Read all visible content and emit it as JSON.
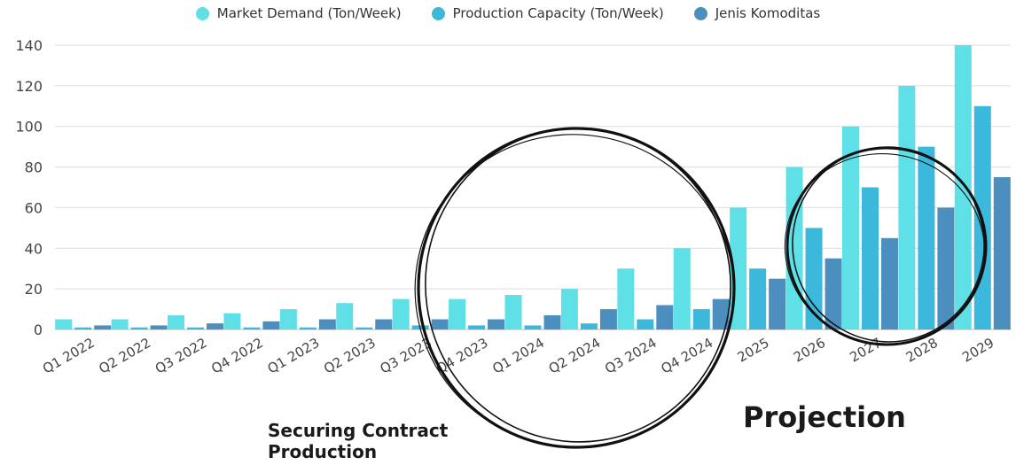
{
  "chart_data": {
    "type": "bar",
    "categories": [
      "Q1 2022",
      "Q2 2022",
      "Q3 2022",
      "Q4 2022",
      "Q1 2023",
      "Q2 2023",
      "Q3 2023",
      "Q4 2023",
      "Q1 2024",
      "Q2 2024",
      "Q3 2024",
      "Q4 2024",
      "2025",
      "2026",
      "2027",
      "2028",
      "2029"
    ],
    "series": [
      {
        "name": "Market Demand (Ton/Week)",
        "color": "#5fdfe6",
        "values": [
          5,
          5,
          7,
          8,
          10,
          13,
          15,
          15,
          17,
          20,
          30,
          40,
          60,
          80,
          100,
          120,
          140
        ]
      },
      {
        "name": "Production Capacity (Ton/Week)",
        "color": "#3bb8dc",
        "values": [
          1,
          1,
          1,
          1,
          1,
          1,
          2,
          2,
          2,
          3,
          5,
          10,
          30,
          50,
          70,
          90,
          110
        ]
      },
      {
        "name": "Jenis Komoditas",
        "color": "#4c8fbf",
        "values": [
          2,
          2,
          3,
          4,
          5,
          5,
          5,
          5,
          7,
          10,
          12,
          15,
          25,
          35,
          45,
          60,
          75
        ]
      }
    ],
    "yticks": [
      0,
      20,
      40,
      60,
      80,
      100,
      120,
      140
    ],
    "ylim": [
      0,
      140
    ],
    "grid": true,
    "legend_position": "top-center"
  },
  "annotations": {
    "securing": "Securing Contract Production",
    "projection": "Projection"
  }
}
